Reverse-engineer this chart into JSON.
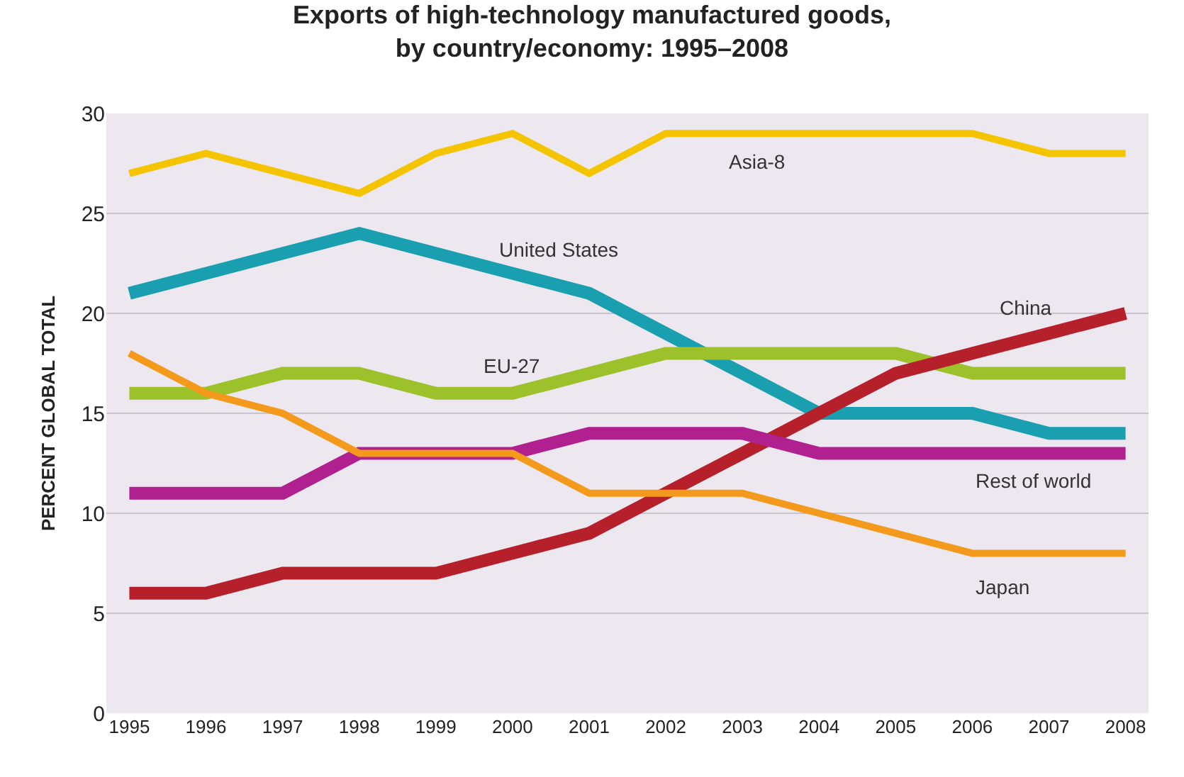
{
  "chart_data": {
    "type": "line",
    "title": "Exports of high-technology manufactured goods,\nby country/economy: 1995–2008",
    "ylabel": "PERCENT GLOBAL TOTAL",
    "categories": [
      "1995",
      "1996",
      "1997",
      "1998",
      "1999",
      "2000",
      "2001",
      "2002",
      "2003",
      "2004",
      "2005",
      "2006",
      "2007",
      "2008"
    ],
    "series": [
      {
        "name": "Asia-8",
        "color": "#f5c400",
        "values": [
          27,
          28,
          27,
          26,
          28,
          29,
          27,
          29,
          29,
          29,
          29,
          29,
          28,
          28
        ]
      },
      {
        "name": "United States",
        "color": "#1a9fb0",
        "values": [
          21,
          22,
          23,
          24,
          23,
          22,
          21,
          19,
          17,
          15,
          15,
          15,
          14,
          14
        ]
      },
      {
        "name": "EU-27",
        "color": "#9dc12a",
        "values": [
          16,
          16,
          17,
          17,
          16,
          16,
          17,
          18,
          18,
          18,
          18,
          17,
          17,
          17
        ]
      },
      {
        "name": "China",
        "color": "#b5202a",
        "values": [
          6,
          6,
          7,
          7,
          7,
          8,
          9,
          11,
          13,
          15,
          17,
          18,
          19,
          20
        ]
      },
      {
        "name": "Rest of world",
        "color": "#b0208f",
        "values": [
          11,
          11,
          11,
          13,
          13,
          13,
          14,
          14,
          14,
          13,
          13,
          13,
          13,
          13
        ]
      },
      {
        "name": "Japan",
        "color": "#f39a1c",
        "values": [
          18,
          16,
          15,
          13,
          13,
          13,
          11,
          11,
          11,
          10,
          9,
          8,
          8,
          8
        ]
      }
    ],
    "ylim": [
      0,
      30
    ],
    "yticks": [
      0,
      5,
      10,
      15,
      20,
      25,
      30
    ],
    "grid": "y",
    "legend": false,
    "marker": "none",
    "line_style": "solid"
  }
}
